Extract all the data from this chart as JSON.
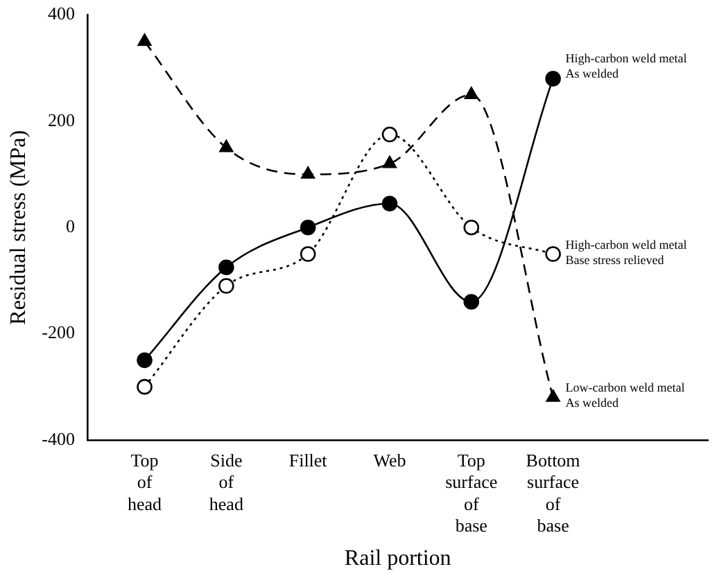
{
  "chart_data": {
    "type": "line",
    "xlabel": "Rail portion",
    "ylabel": "Residual stress (MPa)",
    "categories": [
      "Top of head",
      "Side of head",
      "Fillet",
      "Web",
      "Top surface of base",
      "Bottom surface of base"
    ],
    "ylim": [
      -400,
      400
    ],
    "yticks": [
      -400,
      -200,
      0,
      200,
      400
    ],
    "grid": false,
    "legend": false,
    "series": [
      {
        "name": "High-carbon weld metal\nAs welded",
        "color": "#000000",
        "marker": "circle",
        "line_style": "solid",
        "values": [
          -250,
          -75,
          0,
          45,
          -140,
          280
        ]
      },
      {
        "name": "High-carbon weld metal\nBase stress relieved",
        "color": "#000000",
        "marker": "circle",
        "line_style": "dotted",
        "values": [
          -300,
          -110,
          -50,
          175,
          0,
          -50
        ]
      },
      {
        "name": "Low-carbon weld metal\nAs welded",
        "color": "#000000",
        "marker": "triangle",
        "line_style": "dashed",
        "values": [
          350,
          150,
          100,
          120,
          250,
          -320
        ]
      }
    ]
  }
}
